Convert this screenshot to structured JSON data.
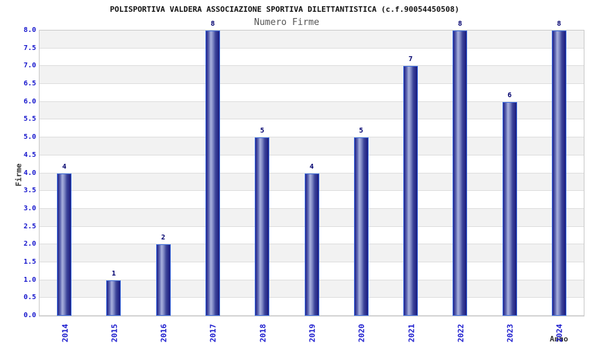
{
  "title": "POLISPORTIVA VALDERA ASSOCIAZIONE SPORTIVA DILETTANTISTICA (c.f.90054450508)",
  "subtitle": "Numero Firme",
  "chart_data": {
    "type": "bar",
    "title": "POLISPORTIVA VALDERA ASSOCIAZIONE SPORTIVA DILETTANTISTICA (c.f.90054450508)",
    "subtitle": "Numero Firme",
    "categories": [
      "2014",
      "2015",
      "2016",
      "2017",
      "2018",
      "2019",
      "2020",
      "2021",
      "2022",
      "2023",
      "2024"
    ],
    "values": [
      4,
      1,
      2,
      8,
      5,
      4,
      5,
      7,
      8,
      6,
      8
    ],
    "xlabel": "Anno",
    "ylabel": "Firme",
    "ylim": [
      0,
      8
    ],
    "ytick_step": 0.5,
    "ytick_format_decimals": 1,
    "grid": "horizontal alternating bands every 0.5",
    "legend": "none",
    "colors": {
      "tick_label": "#1717cd",
      "value_label": "#00006e",
      "title": "#111111",
      "subtitle": "#555555",
      "axis_title": "#333333",
      "band_a": "#f2f2f2",
      "band_b": "#ffffff",
      "grid_line": "#dddddd",
      "plot_border": "#c9c9c9",
      "bar_border": "#3f6fe0",
      "bar_gradient": [
        "#20208a",
        "#5d66b0",
        "#a9b1dd",
        "#7e87c4",
        "#3d459a",
        "#1a1a7e"
      ]
    }
  }
}
